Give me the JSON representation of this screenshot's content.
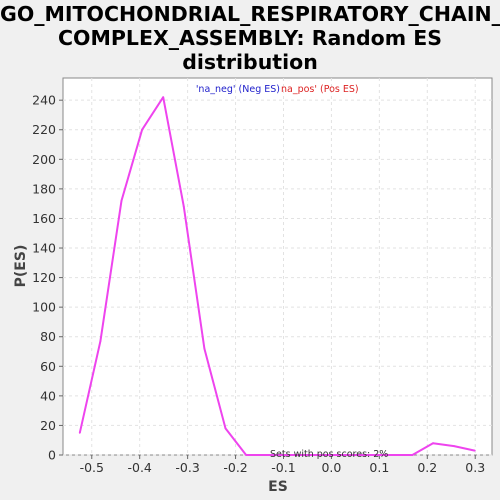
{
  "chart_data": {
    "type": "line",
    "title_lines": [
      "GO_MITOCHONDRIAL_RESPIRATORY_CHAIN_",
      "COMPLEX_ASSEMBLY: Random ES",
      "distribution"
    ],
    "xlabel": "ES",
    "ylabel": "P(ES)",
    "xlim": [
      -0.56,
      0.335
    ],
    "ylim": [
      0,
      255
    ],
    "xticks": [
      -0.5,
      -0.4,
      -0.3,
      -0.2,
      -0.1,
      0.0,
      0.1,
      0.2,
      0.3
    ],
    "xtick_labels": [
      "-0.5",
      "-0.4",
      "-0.3",
      "-0.2",
      "-0.1",
      "0.0",
      "0.1",
      "0.2",
      "0.3"
    ],
    "yticks": [
      0,
      20,
      40,
      60,
      80,
      100,
      120,
      140,
      160,
      180,
      200,
      220,
      240
    ],
    "grid": true,
    "legend": [
      {
        "label": "'na_neg' (Neg ES)",
        "color": "#2222cc"
      },
      {
        "label": "na_pos' (Pos ES)",
        "color": "#dd2222"
      }
    ],
    "annotation": "Sets with pos scores: 2%",
    "series_color": "#ee44ee",
    "series": [
      {
        "x": [
          -0.525,
          -0.482,
          -0.438,
          -0.395,
          -0.351,
          -0.308,
          -0.265,
          -0.221,
          -0.178,
          -0.134,
          -0.091,
          -0.048,
          -0.004,
          0.039,
          0.082,
          0.126,
          0.169,
          0.212,
          0.256,
          0.299
        ],
        "y": [
          15,
          77,
          172,
          220,
          242,
          168,
          72,
          18,
          0,
          0,
          0,
          0,
          0,
          0,
          0,
          0,
          0,
          8,
          6,
          3
        ]
      }
    ]
  }
}
